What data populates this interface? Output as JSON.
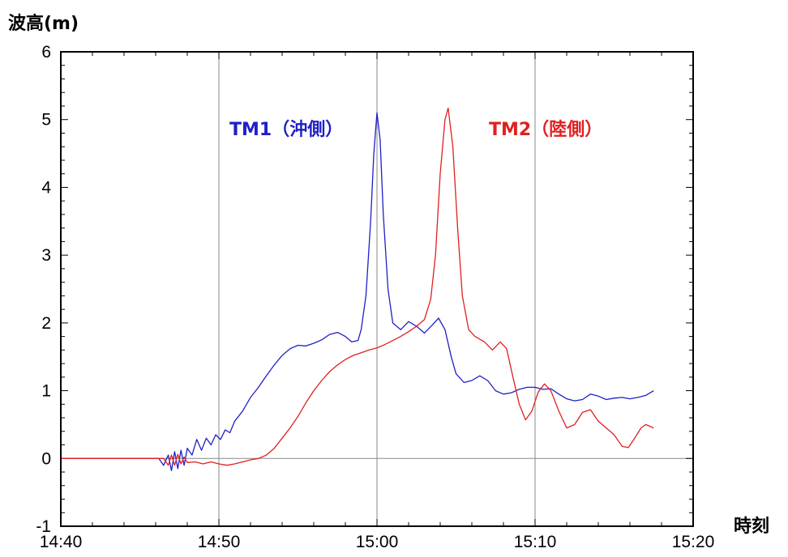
{
  "chart_data": {
    "type": "line",
    "ylabel": "波高(m)",
    "xlabel": "時刻",
    "x_ticks": [
      "14:40",
      "14:50",
      "15:00",
      "15:10",
      "15:20"
    ],
    "y_ticks": [
      "-1",
      "0",
      "1",
      "2",
      "3",
      "4",
      "5",
      "6"
    ],
    "xlim_minutes": [
      0,
      40
    ],
    "ylim": [
      -1,
      6
    ],
    "grid": "major x at 10-minute intervals, y at 0",
    "series": [
      {
        "name": "TM1（沖側）",
        "color": "#1f1fc8",
        "points": [
          [
            0,
            0
          ],
          [
            4,
            0
          ],
          [
            6.2,
            0.0
          ],
          [
            6.5,
            -0.1
          ],
          [
            6.8,
            0.05
          ],
          [
            7.0,
            -0.18
          ],
          [
            7.2,
            0.1
          ],
          [
            7.4,
            -0.15
          ],
          [
            7.6,
            0.12
          ],
          [
            7.8,
            -0.1
          ],
          [
            8.0,
            0.15
          ],
          [
            8.3,
            0.05
          ],
          [
            8.6,
            0.28
          ],
          [
            8.9,
            0.12
          ],
          [
            9.2,
            0.3
          ],
          [
            9.5,
            0.2
          ],
          [
            9.8,
            0.35
          ],
          [
            10.1,
            0.28
          ],
          [
            10.4,
            0.42
          ],
          [
            10.7,
            0.38
          ],
          [
            11.0,
            0.55
          ],
          [
            11.5,
            0.7
          ],
          [
            12.0,
            0.9
          ],
          [
            12.5,
            1.05
          ],
          [
            13.0,
            1.22
          ],
          [
            13.5,
            1.38
          ],
          [
            14.0,
            1.52
          ],
          [
            14.5,
            1.62
          ],
          [
            15.0,
            1.67
          ],
          [
            15.5,
            1.66
          ],
          [
            16.0,
            1.7
          ],
          [
            16.5,
            1.75
          ],
          [
            17.0,
            1.83
          ],
          [
            17.5,
            1.86
          ],
          [
            18.0,
            1.8
          ],
          [
            18.4,
            1.72
          ],
          [
            18.8,
            1.74
          ],
          [
            19.0,
            1.9
          ],
          [
            19.3,
            2.4
          ],
          [
            19.6,
            3.5
          ],
          [
            19.8,
            4.5
          ],
          [
            20.0,
            5.1
          ],
          [
            20.2,
            4.7
          ],
          [
            20.4,
            3.6
          ],
          [
            20.7,
            2.5
          ],
          [
            21.0,
            2.0
          ],
          [
            21.5,
            1.9
          ],
          [
            22.0,
            2.02
          ],
          [
            22.5,
            1.95
          ],
          [
            23.0,
            1.85
          ],
          [
            23.5,
            1.97
          ],
          [
            23.9,
            2.07
          ],
          [
            24.3,
            1.9
          ],
          [
            24.7,
            1.5
          ],
          [
            25.0,
            1.25
          ],
          [
            25.5,
            1.12
          ],
          [
            26.0,
            1.15
          ],
          [
            26.5,
            1.22
          ],
          [
            27.0,
            1.15
          ],
          [
            27.5,
            1.0
          ],
          [
            28.0,
            0.95
          ],
          [
            28.5,
            0.97
          ],
          [
            29.0,
            1.02
          ],
          [
            29.5,
            1.05
          ],
          [
            30.0,
            1.05
          ],
          [
            30.5,
            1.02
          ],
          [
            31.0,
            1.03
          ],
          [
            31.5,
            0.95
          ],
          [
            32.0,
            0.88
          ],
          [
            32.5,
            0.85
          ],
          [
            33.0,
            0.87
          ],
          [
            33.5,
            0.95
          ],
          [
            34.0,
            0.92
          ],
          [
            34.5,
            0.87
          ],
          [
            35.0,
            0.89
          ],
          [
            35.5,
            0.9
          ],
          [
            36.0,
            0.88
          ],
          [
            36.5,
            0.9
          ],
          [
            37.0,
            0.93
          ],
          [
            37.5,
            1.0
          ]
        ]
      },
      {
        "name": "TM2（陸側）",
        "color": "#e02020",
        "points": [
          [
            0,
            0
          ],
          [
            4,
            0
          ],
          [
            6.5,
            0.0
          ],
          [
            6.8,
            -0.1
          ],
          [
            7.0,
            0.05
          ],
          [
            7.2,
            -0.1
          ],
          [
            7.4,
            0.06
          ],
          [
            7.6,
            -0.08
          ],
          [
            7.8,
            0.02
          ],
          [
            8.0,
            -0.06
          ],
          [
            8.5,
            -0.05
          ],
          [
            9.0,
            -0.08
          ],
          [
            9.5,
            -0.05
          ],
          [
            10.0,
            -0.08
          ],
          [
            10.5,
            -0.1
          ],
          [
            11.0,
            -0.08
          ],
          [
            11.5,
            -0.05
          ],
          [
            12.0,
            -0.02
          ],
          [
            12.5,
            0.0
          ],
          [
            13.0,
            0.05
          ],
          [
            13.5,
            0.15
          ],
          [
            14.0,
            0.3
          ],
          [
            14.5,
            0.45
          ],
          [
            15.0,
            0.62
          ],
          [
            15.5,
            0.82
          ],
          [
            16.0,
            1.0
          ],
          [
            16.5,
            1.15
          ],
          [
            17.0,
            1.28
          ],
          [
            17.5,
            1.38
          ],
          [
            18.0,
            1.46
          ],
          [
            18.5,
            1.52
          ],
          [
            19.0,
            1.56
          ],
          [
            19.5,
            1.6
          ],
          [
            20.0,
            1.63
          ],
          [
            20.5,
            1.68
          ],
          [
            21.0,
            1.74
          ],
          [
            21.5,
            1.8
          ],
          [
            22.0,
            1.87
          ],
          [
            22.5,
            1.95
          ],
          [
            23.0,
            2.05
          ],
          [
            23.4,
            2.35
          ],
          [
            23.7,
            3.0
          ],
          [
            24.0,
            4.2
          ],
          [
            24.3,
            5.0
          ],
          [
            24.5,
            5.17
          ],
          [
            24.8,
            4.6
          ],
          [
            25.1,
            3.4
          ],
          [
            25.4,
            2.4
          ],
          [
            25.8,
            1.9
          ],
          [
            26.2,
            1.8
          ],
          [
            26.8,
            1.72
          ],
          [
            27.3,
            1.6
          ],
          [
            27.8,
            1.72
          ],
          [
            28.2,
            1.62
          ],
          [
            28.6,
            1.2
          ],
          [
            29.0,
            0.8
          ],
          [
            29.4,
            0.57
          ],
          [
            29.8,
            0.7
          ],
          [
            30.2,
            0.98
          ],
          [
            30.6,
            1.1
          ],
          [
            31.0,
            1.0
          ],
          [
            31.5,
            0.7
          ],
          [
            32.0,
            0.45
          ],
          [
            32.5,
            0.5
          ],
          [
            33.0,
            0.68
          ],
          [
            33.5,
            0.72
          ],
          [
            34.0,
            0.55
          ],
          [
            34.5,
            0.45
          ],
          [
            35.0,
            0.35
          ],
          [
            35.5,
            0.18
          ],
          [
            35.9,
            0.16
          ],
          [
            36.3,
            0.3
          ],
          [
            36.7,
            0.45
          ],
          [
            37.0,
            0.5
          ],
          [
            37.5,
            0.45
          ]
        ]
      }
    ]
  }
}
